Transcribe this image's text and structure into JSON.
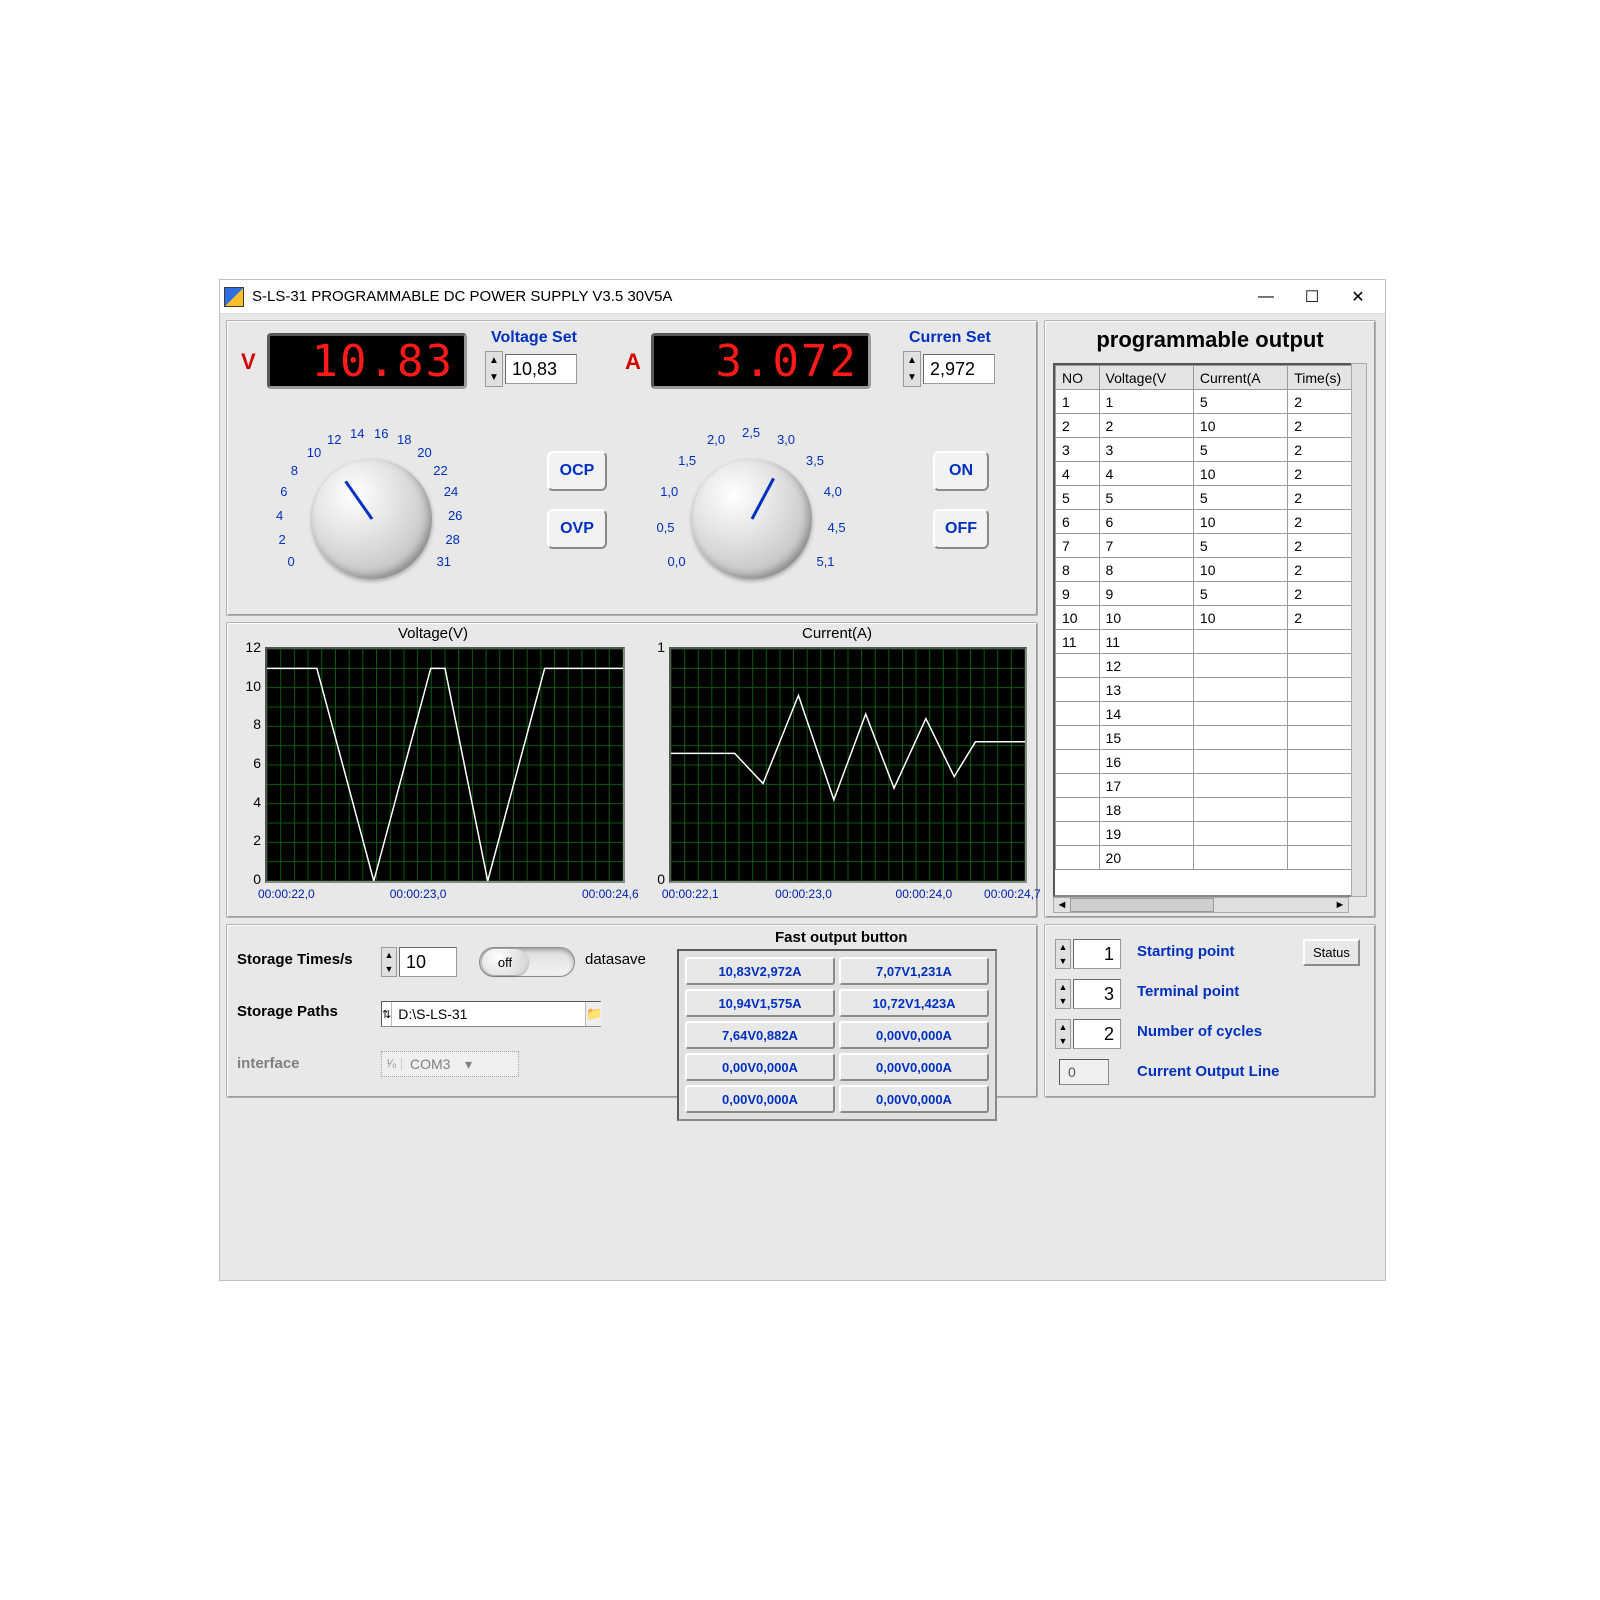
{
  "window": {
    "title": "S-LS-31 PROGRAMMABLE DC POWER SUPPLY V3.5  30V5A"
  },
  "readout": {
    "v_label": "V",
    "v_value": "10.83",
    "a_label": "A",
    "a_value": "3.072",
    "voltage_set_label": "Voltage Set",
    "voltage_set_value": "10,83",
    "current_set_label": "Curren Set",
    "current_set_value": "2,972",
    "ocp": "OCP",
    "ovp": "OVP",
    "on": "ON",
    "off": "OFF"
  },
  "knob_voltage": {
    "ticks": [
      "0",
      "2",
      "4",
      "6",
      "8",
      "10",
      "12",
      "14",
      "16",
      "18",
      "20",
      "22",
      "24",
      "26",
      "28",
      "31"
    ],
    "needle_angle_deg": -35
  },
  "knob_current": {
    "ticks": [
      "0,0",
      "0,5",
      "1,0",
      "1,5",
      "2,0",
      "2,5",
      "3,0",
      "3,5",
      "4,0",
      "4,5",
      "5,1"
    ],
    "needle_angle_deg": 28
  },
  "voltage_chart": {
    "title": "Voltage(V)",
    "ylim": [
      0,
      12
    ],
    "ytick_step": 2,
    "x_labels": [
      "00:00:22,0",
      "00:00:23,0",
      "00:00:24,6"
    ],
    "x_positions": [
      0.06,
      0.43,
      0.97
    ],
    "y_values": [
      11,
      11,
      11,
      0,
      11,
      11,
      0,
      11,
      11,
      11,
      11
    ],
    "x_values": [
      0.0,
      0.06,
      0.14,
      0.3,
      0.46,
      0.5,
      0.62,
      0.78,
      0.83,
      0.94,
      1.0
    ],
    "background": "#000000",
    "trace_color": "#ffffff",
    "grid_color": "#0a5a0a"
  },
  "current_chart": {
    "title": "Current(A)",
    "ylim": [
      0,
      1
    ],
    "ytick_step": 1,
    "x_labels": [
      "00:00:22,1",
      "00:00:23,0",
      "00:00:24,0",
      "00:00:24,7"
    ],
    "x_positions": [
      0.06,
      0.38,
      0.72,
      0.97
    ],
    "y_values": [
      0.55,
      0.55,
      0.42,
      0.8,
      0.35,
      0.72,
      0.4,
      0.7,
      0.45,
      0.6,
      0.6,
      0.6
    ],
    "x_values": [
      0.0,
      0.18,
      0.26,
      0.36,
      0.46,
      0.55,
      0.63,
      0.72,
      0.8,
      0.86,
      0.94,
      1.0
    ],
    "background": "#000000",
    "trace_color": "#ffffff",
    "grid_color": "#0a5a0a"
  },
  "bottom": {
    "storage_times_label": "Storage Times/s",
    "storage_times_value": "10",
    "datasave_label": "datasave",
    "toggle_text": "off",
    "storage_paths_label": "Storage  Paths",
    "storage_path_value": "D:\\S-LS-31",
    "interface_label": "interface",
    "interface_value": "COM3",
    "fast_title": "Fast output button",
    "fast_buttons": [
      "10,83V2,972A",
      "7,07V1,231A",
      "10,94V1,575A",
      "10,72V1,423A",
      "7,64V0,882A",
      "0,00V0,000A",
      "0,00V0,000A",
      "0,00V0,000A",
      "0,00V0,000A",
      "0,00V0,000A"
    ]
  },
  "prog_table": {
    "title": "programmable output",
    "columns": [
      "NO",
      "Voltage(V",
      "Current(A",
      "Time(s)"
    ],
    "rows": [
      [
        "1",
        "1",
        "5",
        "2"
      ],
      [
        "2",
        "2",
        "10",
        "2"
      ],
      [
        "3",
        "3",
        "5",
        "2"
      ],
      [
        "4",
        "4",
        "10",
        "2"
      ],
      [
        "5",
        "5",
        "5",
        "2"
      ],
      [
        "6",
        "6",
        "10",
        "2"
      ],
      [
        "7",
        "7",
        "5",
        "2"
      ],
      [
        "8",
        "8",
        "10",
        "2"
      ],
      [
        "9",
        "9",
        "5",
        "2"
      ],
      [
        "10",
        "10",
        "10",
        "2"
      ],
      [
        "11",
        "11",
        "",
        ""
      ],
      [
        "",
        "12",
        "",
        ""
      ],
      [
        "",
        "13",
        "",
        ""
      ],
      [
        "",
        "14",
        "",
        ""
      ],
      [
        "",
        "15",
        "",
        ""
      ],
      [
        "",
        "16",
        "",
        ""
      ],
      [
        "",
        "17",
        "",
        ""
      ],
      [
        "",
        "18",
        "",
        ""
      ],
      [
        "",
        "19",
        "",
        ""
      ],
      [
        "",
        "20",
        "",
        ""
      ]
    ]
  },
  "settings": {
    "starting_label": "Starting point",
    "starting_value": "1",
    "terminal_label": "Terminal point",
    "terminal_value": "3",
    "cycles_label": "Number of cycles",
    "cycles_value": "2",
    "current_line_label": "Current Output Line",
    "current_line_value": "0",
    "status_label": "Status"
  }
}
